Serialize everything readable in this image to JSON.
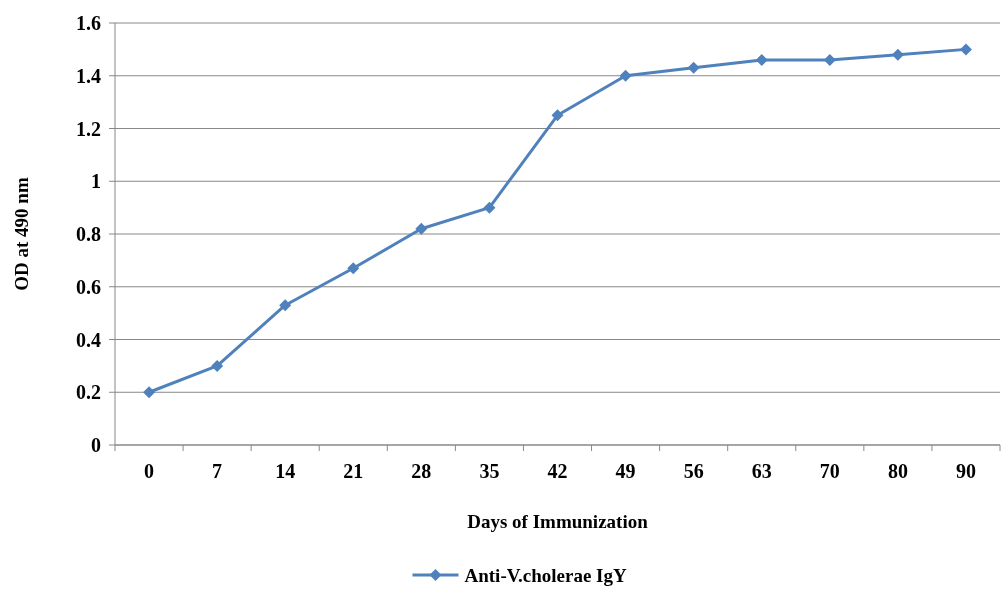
{
  "chart_data": {
    "type": "line",
    "xlabel": "Days of Immunization",
    "ylabel": "OD at 490 nm",
    "categories": [
      "0",
      "7",
      "14",
      "21",
      "28",
      "35",
      "42",
      "49",
      "56",
      "63",
      "70",
      "80",
      "90"
    ],
    "series": [
      {
        "name": "Anti-V.cholerae IgY",
        "color": "#4f81bd",
        "values": [
          0.2,
          0.3,
          0.53,
          0.67,
          0.82,
          0.9,
          1.25,
          1.4,
          1.43,
          1.46,
          1.46,
          1.48,
          1.5
        ]
      }
    ],
    "ylim": [
      0,
      1.6
    ],
    "yticks": [
      0,
      0.2,
      0.4,
      0.6,
      0.8,
      1,
      1.2,
      1.4,
      1.6
    ],
    "grid": "y",
    "legend": "bottom",
    "marker": "diamond",
    "line_style": "solid"
  }
}
